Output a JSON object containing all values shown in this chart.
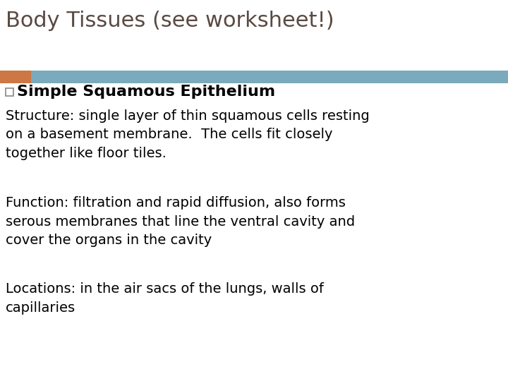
{
  "title": "Body Tissues (see worksheet!)",
  "title_fontsize": 22,
  "title_color": "#5A4A42",
  "orange_bar_color": "#CC7744",
  "blue_bar_color": "#7AAABB",
  "bullet_square_color": "#888888",
  "heading": "Simple Squamous Epithelium",
  "heading_fontsize": 16,
  "structure_text": "Structure: single layer of thin squamous cells resting\non a basement membrane.  The cells fit closely\ntogether like floor tiles.",
  "structure_fontsize": 14,
  "function_text": "Function: filtration and rapid diffusion, also forms\nserous membranes that line the ventral cavity and\ncover the organs in the cavity",
  "function_fontsize": 14,
  "locations_text": "Locations: in the air sacs of the lungs, walls of\ncapillaries",
  "locations_fontsize": 14,
  "bg_color": "#FFFFFF"
}
